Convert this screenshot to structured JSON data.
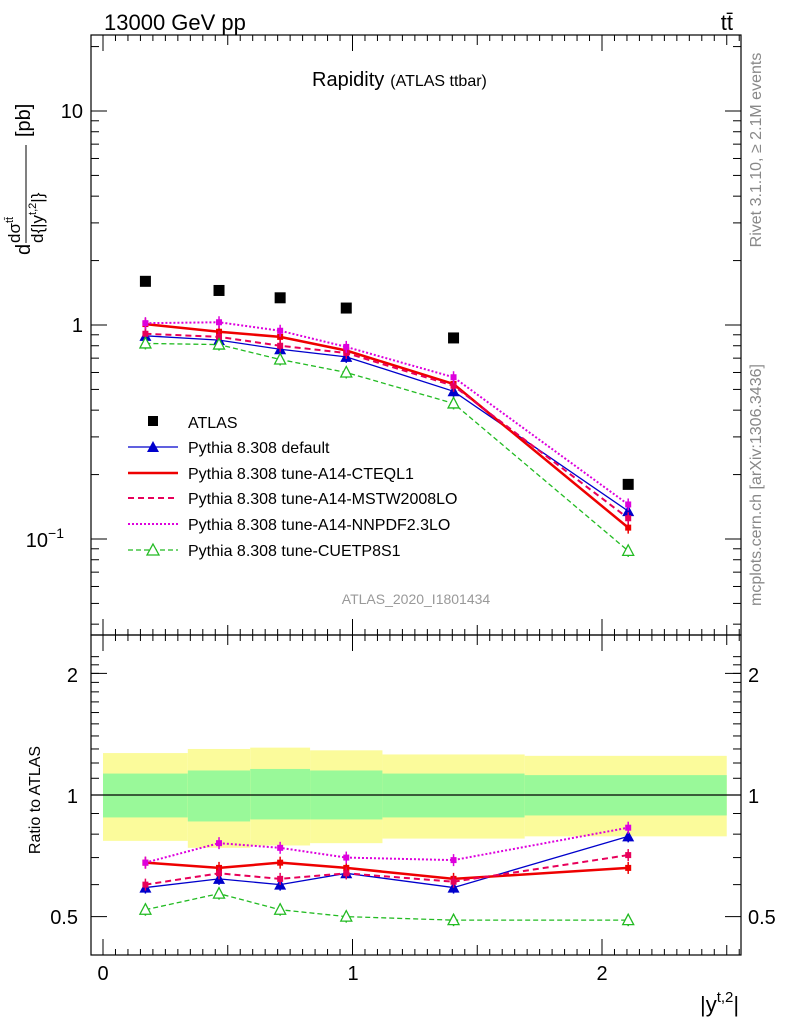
{
  "header": {
    "energy": "13000 GeV pp",
    "process": "tt̄",
    "title": "Rapidity",
    "subtitle": "(ATLAS ttbar)",
    "analysis_id": "ATLAS_2020_I1801434",
    "rivet_note": "Rivet 3.1.10, ≥ 2.1M events",
    "mcplots_note": "mcplots.cern.ch [arXiv:1306.3436]"
  },
  "labels": {
    "ylabel_top_num": "dσ",
    "ylabel_top_num_sup": "tt̄",
    "ylabel_top_den": "d{|y",
    "ylabel_top_den_sup": "t,2",
    "ylabel_top_den_end": "|}",
    "ylabel_top_unit": "[pb]",
    "ylabel_top_prefix": "d",
    "ylabel_bottom": "Ratio to ATLAS",
    "xlabel_main": "|y",
    "xlabel_sup": "t,2",
    "xlabel_end": "|"
  },
  "ticks": {
    "top_y_10": "10",
    "top_y_1": "1",
    "top_y_01_base": "10",
    "top_y_01_exp": "−1",
    "bottom_y": [
      "2",
      "1",
      "0.5"
    ],
    "x": [
      "0",
      "1",
      "2"
    ]
  },
  "legend": {
    "atlas": "ATLAS",
    "default": "Pythia 8.308 default",
    "cteql1": "Pythia 8.308 tune-A14-CTEQL1",
    "mstw": "Pythia 8.308 tune-A14-MSTW2008LO",
    "nnpdf": "Pythia 8.308 tune-A14-NNPDF2.3LO",
    "cuetp8s1": "Pythia 8.308 tune-CUETP8S1"
  },
  "colors": {
    "atlas": "#000000",
    "default": "#0000cc",
    "cteql1": "#ee0000",
    "mstw": "#e8005a",
    "nnpdf": "#dd00dd",
    "cuetp8s1": "#22bb22",
    "band_inner": "#99f999",
    "band_outer": "#fbfb9b"
  },
  "chart_data": {
    "type": "line",
    "x_scale": "linear",
    "y_scale_top": "log",
    "xlim": [
      -0.1,
      2.6
    ],
    "ylim_top": [
      0.03,
      22
    ],
    "ylim_bottom": [
      0.3,
      2.3
    ],
    "y_scale_bottom": "log",
    "x": [
      0.17,
      0.465,
      0.71,
      0.975,
      1.405,
      2.105
    ],
    "bin_edges": [
      0.0,
      0.34,
      0.59,
      0.83,
      1.12,
      1.69,
      2.5
    ],
    "series": [
      {
        "name": "ATLAS",
        "key": "atlas",
        "style": "square",
        "values": [
          1.6,
          1.45,
          1.34,
          1.2,
          0.87,
          0.18
        ]
      },
      {
        "name": "Pythia 8.308 default",
        "key": "default",
        "style": "solid-triangle",
        "values": [
          0.89,
          0.85,
          0.77,
          0.71,
          0.49,
          0.135
        ],
        "ratio": [
          0.59,
          0.62,
          0.6,
          0.64,
          0.59,
          0.79
        ]
      },
      {
        "name": "Pythia 8.308 tune-A14-CTEQL1",
        "key": "cteql1",
        "style": "thick",
        "values": [
          1.01,
          0.93,
          0.88,
          0.76,
          0.53,
          0.113
        ],
        "ratio": [
          0.68,
          0.66,
          0.68,
          0.66,
          0.62,
          0.66
        ]
      },
      {
        "name": "Pythia 8.308 tune-A14-MSTW2008LO",
        "key": "mstw",
        "style": "dashed",
        "values": [
          0.91,
          0.88,
          0.8,
          0.74,
          0.52,
          0.125
        ],
        "ratio": [
          0.6,
          0.64,
          0.62,
          0.64,
          0.61,
          0.71
        ]
      },
      {
        "name": "Pythia 8.308 tune-A14-NNPDF2.3LO",
        "key": "nnpdf",
        "style": "dotted",
        "values": [
          1.02,
          1.03,
          0.94,
          0.79,
          0.57,
          0.145
        ],
        "ratio": [
          0.68,
          0.76,
          0.74,
          0.7,
          0.69,
          0.83
        ]
      },
      {
        "name": "Pythia 8.308 tune-CUETP8S1",
        "key": "cuetp8s1",
        "style": "open-triangle-dashed",
        "values": [
          0.82,
          0.81,
          0.69,
          0.6,
          0.43,
          0.088
        ],
        "ratio": [
          0.52,
          0.57,
          0.52,
          0.5,
          0.49,
          0.49
        ]
      }
    ],
    "ratio_band": {
      "inner_low": [
        0.88,
        0.86,
        0.87,
        0.87,
        0.88,
        0.89
      ],
      "inner_high": [
        1.13,
        1.15,
        1.16,
        1.15,
        1.13,
        1.12
      ],
      "outer_low": [
        0.77,
        0.74,
        0.75,
        0.76,
        0.78,
        0.79
      ],
      "outer_high": [
        1.27,
        1.3,
        1.31,
        1.29,
        1.26,
        1.25
      ]
    }
  }
}
